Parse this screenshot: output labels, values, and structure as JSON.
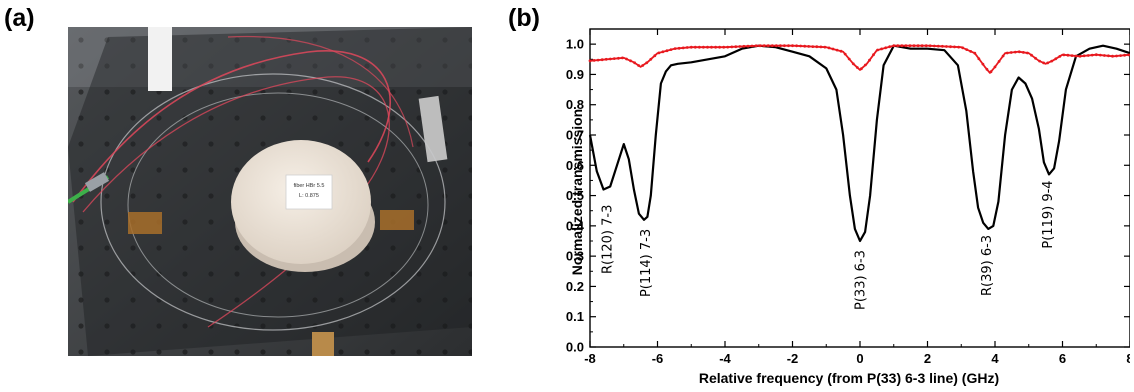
{
  "panels": {
    "a_label": "(a)",
    "b_label": "(b)"
  },
  "photo": {
    "sticker_line1": "fiber HBr 5.5",
    "sticker_line2": "L: 0.875"
  },
  "chart_data": {
    "type": "line",
    "xlabel": "Relative frequency (from P(33) 6-3 line) (GHz)",
    "ylabel": "Normalized transmission",
    "xlim": [
      -8,
      8
    ],
    "ylim": [
      0.0,
      1.05
    ],
    "xticks": [
      -8,
      -6,
      -4,
      -2,
      0,
      2,
      4,
      6,
      8
    ],
    "yticks": [
      0.0,
      0.1,
      0.2,
      0.3,
      0.4,
      0.5,
      0.6,
      0.7,
      0.8,
      0.9,
      1.0
    ],
    "grid": false,
    "series": [
      {
        "color": "#000000",
        "x": [
          -8.0,
          -7.8,
          -7.6,
          -7.4,
          -7.2,
          -7.0,
          -6.85,
          -6.7,
          -6.55,
          -6.4,
          -6.3,
          -6.2,
          -6.05,
          -5.9,
          -5.75,
          -5.6,
          -5.4,
          -5.0,
          -4.5,
          -4.0,
          -3.5,
          -3.0,
          -2.5,
          -2.0,
          -1.5,
          -1.0,
          -0.7,
          -0.5,
          -0.3,
          -0.15,
          0.0,
          0.15,
          0.3,
          0.5,
          0.7,
          1.0,
          1.5,
          2.0,
          2.5,
          2.9,
          3.15,
          3.35,
          3.5,
          3.65,
          3.8,
          3.95,
          4.1,
          4.3,
          4.5,
          4.7,
          4.9,
          5.1,
          5.3,
          5.45,
          5.6,
          5.75,
          5.9,
          6.1,
          6.4,
          6.8,
          7.2,
          7.6,
          8.0
        ],
        "y": [
          0.7,
          0.58,
          0.52,
          0.53,
          0.6,
          0.67,
          0.62,
          0.52,
          0.44,
          0.42,
          0.43,
          0.5,
          0.7,
          0.87,
          0.91,
          0.93,
          0.935,
          0.94,
          0.95,
          0.96,
          0.985,
          0.995,
          0.99,
          0.975,
          0.96,
          0.92,
          0.85,
          0.7,
          0.5,
          0.39,
          0.35,
          0.38,
          0.5,
          0.75,
          0.93,
          0.995,
          0.985,
          0.985,
          0.98,
          0.93,
          0.78,
          0.58,
          0.46,
          0.41,
          0.39,
          0.4,
          0.48,
          0.7,
          0.85,
          0.89,
          0.87,
          0.82,
          0.72,
          0.61,
          0.57,
          0.59,
          0.68,
          0.85,
          0.96,
          0.985,
          0.995,
          0.985,
          0.97
        ]
      },
      {
        "color": "#e8191f",
        "x": [
          -8.0,
          -7.5,
          -7.0,
          -6.7,
          -6.5,
          -6.3,
          -6.0,
          -5.5,
          -5.0,
          -4.0,
          -3.0,
          -2.0,
          -1.0,
          -0.5,
          -0.2,
          0.0,
          0.2,
          0.5,
          1.0,
          2.0,
          3.0,
          3.4,
          3.7,
          3.85,
          4.0,
          4.3,
          4.7,
          5.0,
          5.3,
          5.5,
          5.7,
          6.0,
          6.5,
          7.0,
          7.5,
          8.0
        ],
        "y": [
          0.945,
          0.95,
          0.955,
          0.94,
          0.925,
          0.94,
          0.97,
          0.985,
          0.99,
          0.99,
          0.995,
          0.995,
          0.99,
          0.975,
          0.935,
          0.915,
          0.935,
          0.98,
          0.995,
          0.995,
          0.99,
          0.97,
          0.925,
          0.905,
          0.925,
          0.97,
          0.975,
          0.97,
          0.945,
          0.935,
          0.945,
          0.965,
          0.96,
          0.965,
          0.96,
          0.965
        ]
      }
    ],
    "annotations": [
      {
        "text": "R(120) 7-3",
        "x": -7.5,
        "y": 0.47
      },
      {
        "text": "P(114) 7-3",
        "x": -6.35,
        "y": 0.39
      },
      {
        "text": "P(33) 6-3",
        "x": 0.0,
        "y": 0.32
      },
      {
        "text": "R(39) 6-3",
        "x": 3.75,
        "y": 0.37
      },
      {
        "text": "P(119) 9-4",
        "x": 5.55,
        "y": 0.55
      }
    ]
  }
}
